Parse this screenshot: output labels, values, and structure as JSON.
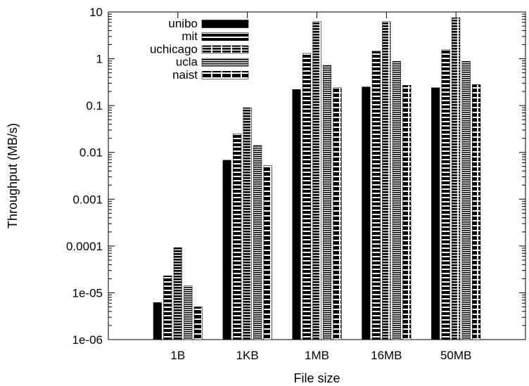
{
  "chart_data": {
    "type": "bar",
    "xlabel": "File size",
    "ylabel": "Throughput (MB/s)",
    "yscale": "log",
    "ylim": [
      1e-06,
      10
    ],
    "yticks": [
      "1e-06",
      "1e-05",
      "0.0001",
      "0.001",
      "0.01",
      "0.1",
      "1",
      "10"
    ],
    "categories": [
      "1B",
      "1KB",
      "1MB",
      "16MB",
      "50MB"
    ],
    "legend_position": "top-left",
    "grid": false,
    "series": [
      {
        "name": "unibo",
        "pattern": "solid",
        "values": [
          6.2e-06,
          0.0068,
          0.22,
          0.25,
          0.24
        ]
      },
      {
        "name": "mit",
        "pattern": "horizontal-dash",
        "values": [
          2.3e-05,
          0.025,
          1.3,
          1.45,
          1.55
        ]
      },
      {
        "name": "uchicago",
        "pattern": "vertical-stripe",
        "values": [
          9.2e-05,
          0.09,
          6.2,
          6.2,
          7.5
        ]
      },
      {
        "name": "ucla",
        "pattern": "fine-stripe",
        "values": [
          1.4e-05,
          0.014,
          0.72,
          0.88,
          0.88
        ]
      },
      {
        "name": "naist",
        "pattern": "checker",
        "values": [
          5e-06,
          0.0052,
          0.24,
          0.27,
          0.28
        ]
      }
    ],
    "colors": {
      "bars": "#000000",
      "background": "#ffffff"
    }
  }
}
